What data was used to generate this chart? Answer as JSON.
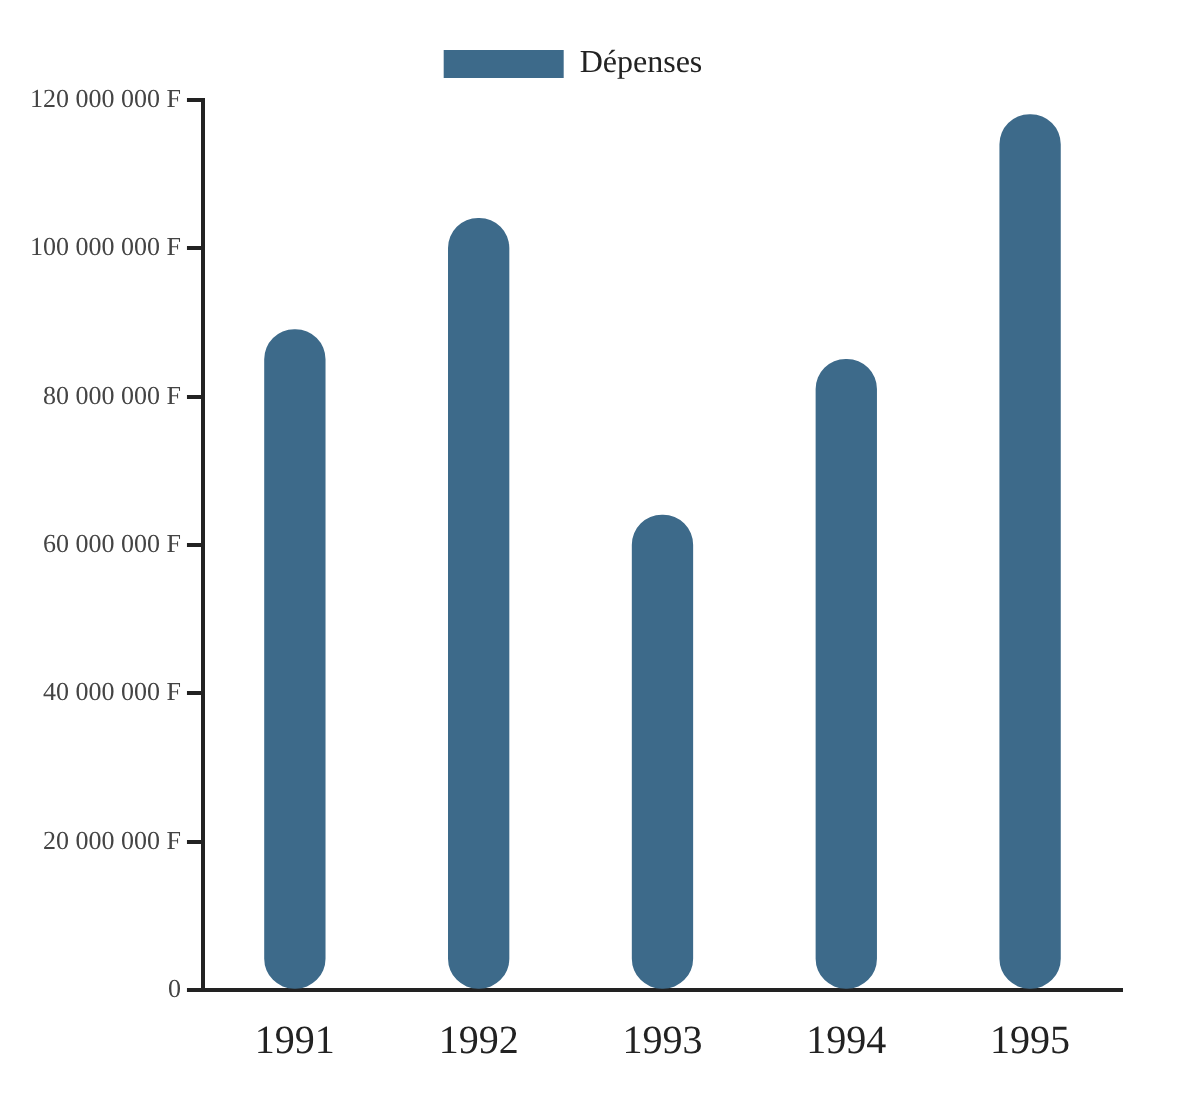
{
  "chart_data": {
    "type": "bar",
    "categories": [
      "1991",
      "1992",
      "1993",
      "1994",
      "1995"
    ],
    "series": [
      {
        "name": "Dépenses",
        "color": "#3d6a8a",
        "values": [
          89000000,
          104000000,
          64000000,
          85000000,
          118000000
        ]
      }
    ],
    "ylim": [
      0,
      120000000
    ],
    "yticks": [
      0,
      {
        "value": 20000000,
        "label": "20 000 000 F"
      },
      {
        "value": 40000000,
        "label": "40 000 000 F"
      },
      {
        "value": 60000000,
        "label": "60 000 000 F"
      },
      {
        "value": 80000000,
        "label": "80 000 000 F"
      },
      {
        "value": 100000000,
        "label": "100 000 000 F"
      },
      {
        "value": 120000000,
        "label": "120 000 000 F"
      }
    ],
    "grid": false,
    "legend": "top"
  }
}
